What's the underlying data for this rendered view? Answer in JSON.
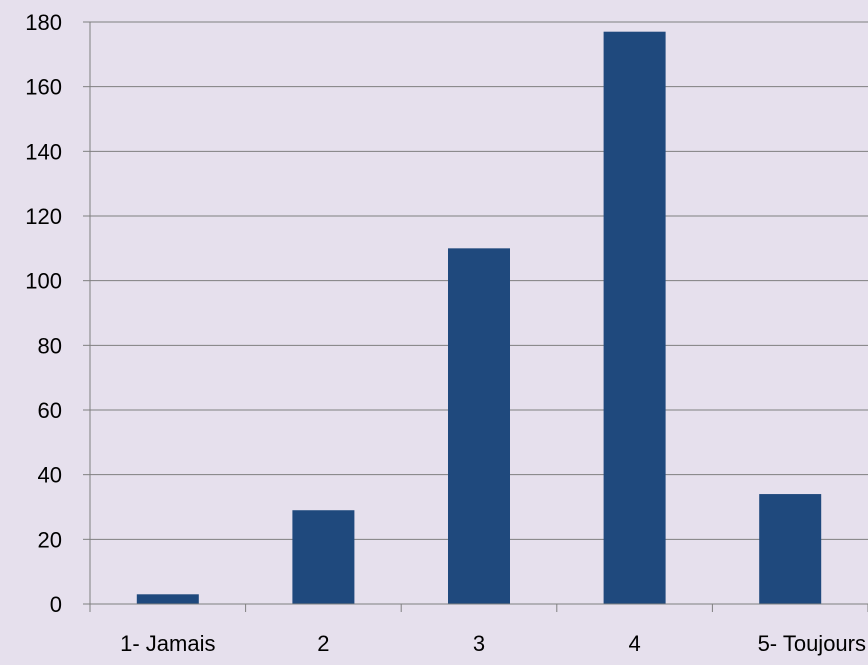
{
  "chart_data": {
    "type": "bar",
    "categories": [
      "1- Jamais",
      "2",
      "3",
      "4",
      "5- Toujours"
    ],
    "values": [
      3,
      29,
      110,
      177,
      34
    ],
    "ylim": [
      0,
      180
    ],
    "yticks": [
      0,
      20,
      40,
      60,
      80,
      100,
      120,
      140,
      160,
      180
    ],
    "grid": true,
    "legend": "none",
    "title": "",
    "xlabel": "",
    "ylabel": ""
  },
  "colors": {
    "background": "#e6e0ed",
    "bar": "#1f497d",
    "gridline": "#7f7f7f",
    "text": "#000000"
  }
}
